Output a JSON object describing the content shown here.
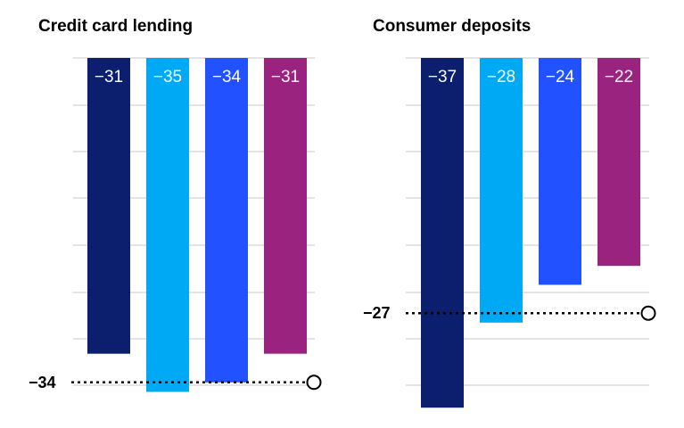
{
  "chart_data": [
    {
      "type": "bar",
      "title": "Credit card lending",
      "categories": [
        "",
        "",
        "",
        ""
      ],
      "values": [
        -31,
        -35,
        -34,
        -31
      ],
      "value_labels": [
        "−31",
        "−35",
        "−34",
        "−31"
      ],
      "colors": [
        "#0b1f6e",
        "#00a9f4",
        "#2251ff",
        "#9b2380"
      ],
      "average": -34,
      "average_label": "−34",
      "ylim": [
        -35,
        0
      ],
      "grid": true
    },
    {
      "type": "bar",
      "title": "Consumer deposits",
      "categories": [
        "",
        "",
        "",
        ""
      ],
      "values": [
        -37,
        -28,
        -24,
        -22
      ],
      "value_labels": [
        "−37",
        "−28",
        "−24",
        "−22"
      ],
      "colors": [
        "#0b1f6e",
        "#00a9f4",
        "#2251ff",
        "#9b2380"
      ],
      "average": -27,
      "average_label": "−27",
      "ylim": [
        -37,
        0
      ],
      "grid": true
    }
  ]
}
